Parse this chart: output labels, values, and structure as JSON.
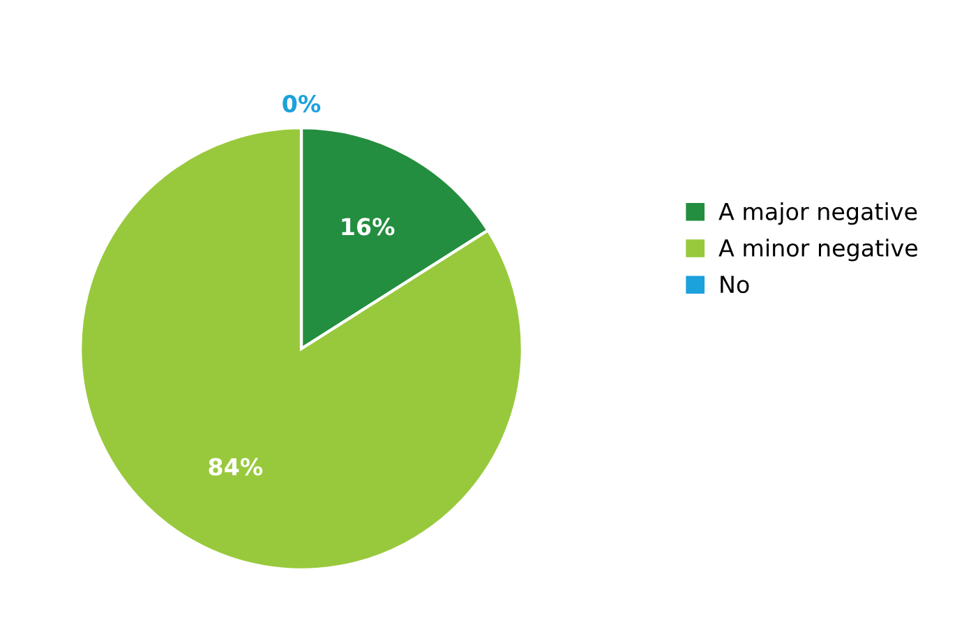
{
  "chart_data": {
    "type": "pie",
    "categories": [
      "A major negative",
      "A minor negative",
      "No"
    ],
    "values": [
      16,
      84,
      0
    ],
    "colors": [
      "#238e3f",
      "#98c93c",
      "#1ba1dc"
    ],
    "value_labels": [
      "16%",
      "84%",
      "0%"
    ],
    "legend": "right"
  }
}
